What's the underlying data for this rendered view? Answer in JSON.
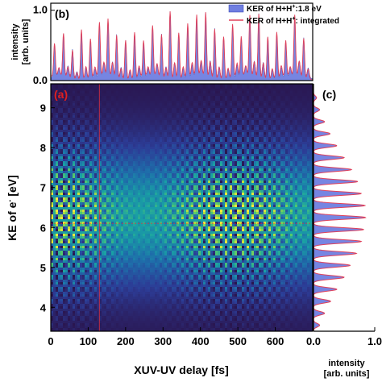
{
  "colors": {
    "fill": "#6f7ee0",
    "line": "#e0405a",
    "axis": "#000000",
    "panel_a_label": "#e02020"
  },
  "chart_data": [
    {
      "panel": "b",
      "panel_label": "(b)",
      "type": "area",
      "ylabel": "intensity",
      "ylabel_unit": "[arb. units]",
      "xlim": [
        0,
        700
      ],
      "ylim": [
        0,
        1.1
      ],
      "yticks": [
        {
          "value": 0.0,
          "label": "0.0"
        },
        {
          "value": 1.0,
          "label": "1.0"
        }
      ],
      "legend_position": "top-right",
      "series": [
        {
          "name_prefix": "KER of H+H",
          "name_sup": "+",
          "name_suffix": ":1.8 eV",
          "style": "filled"
        },
        {
          "name_prefix": "KER of H+H",
          "name_sup": "+",
          "name_suffix": ": integrated",
          "style": "line"
        }
      ],
      "peaks_approx": {
        "x": [
          10,
          34,
          58,
          82,
          106,
          130,
          153,
          176,
          200,
          224,
          248,
          272,
          296,
          319,
          342,
          366,
          390,
          414,
          438,
          462,
          486,
          509,
          532,
          556,
          580,
          604,
          628,
          652,
          676
        ],
        "y": [
          0.45,
          0.6,
          0.4,
          0.7,
          0.55,
          0.75,
          0.8,
          0.6,
          0.55,
          0.65,
          0.5,
          0.7,
          0.6,
          0.95,
          0.65,
          0.75,
          0.85,
          0.9,
          0.7,
          0.6,
          0.75,
          0.55,
          0.85,
          0.9,
          0.6,
          0.65,
          0.5,
          0.85,
          0.55
        ]
      }
    },
    {
      "panel": "a",
      "panel_label": "(a)",
      "type": "heatmap",
      "xlabel": "XUV-UV delay [fs]",
      "ylabel_prefix": "KE of e",
      "ylabel_sup": "-",
      "ylabel_suffix": " [eV]",
      "xlim": [
        0,
        700
      ],
      "ylim": [
        3.4,
        9.6
      ],
      "xticks": [
        0,
        100,
        200,
        300,
        400,
        500,
        600
      ],
      "yticks": [
        4,
        5,
        6,
        7,
        8,
        9
      ],
      "colormap": "viridis-like",
      "vertical_marker_x": 130,
      "horizontal_marker_y": 6.1
    },
    {
      "panel": "c",
      "panel_label": "(c)",
      "type": "area",
      "orientation": "horizontal",
      "xlabel": "intensity",
      "xlabel_unit": "[arb. units]",
      "xlim": [
        0,
        1.0
      ],
      "xticks": [
        {
          "value": 0.0,
          "label": "0.0"
        },
        {
          "value": 1.0,
          "label": "1.0"
        }
      ],
      "peaks_approx": {
        "energy": [
          3.55,
          3.85,
          4.15,
          4.45,
          4.75,
          5.05,
          5.35,
          5.65,
          5.95,
          6.25,
          6.55,
          6.85,
          7.15,
          7.45,
          7.75,
          8.05,
          8.35,
          8.65,
          8.95,
          9.25
        ],
        "intensity": [
          0.1,
          0.18,
          0.28,
          0.38,
          0.5,
          0.6,
          0.7,
          0.78,
          0.82,
          0.85,
          0.84,
          0.78,
          0.72,
          0.62,
          0.5,
          0.38,
          0.27,
          0.18,
          0.1,
          0.05
        ]
      }
    }
  ]
}
